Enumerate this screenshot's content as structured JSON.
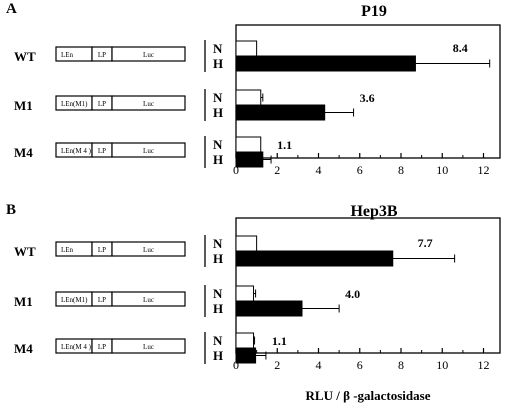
{
  "panels": [
    {
      "label": "A",
      "rows": [
        {
          "name": "WT",
          "segments": [
            "LEn",
            "LP",
            "Luc"
          ]
        },
        {
          "name": "M1",
          "segments": [
            "LEn(M1)",
            "LP",
            "Luc"
          ]
        },
        {
          "name": "M4",
          "segments": [
            "LEn(M 4 )",
            "LP",
            "Luc"
          ]
        }
      ]
    },
    {
      "label": "B",
      "rows": [
        {
          "name": "WT",
          "segments": [
            "LEn",
            "LP",
            "Luc"
          ]
        },
        {
          "name": "M1",
          "segments": [
            "LEn(M1)",
            "LP",
            "Luc"
          ]
        },
        {
          "name": "M4",
          "segments": [
            "LEn(M 4 )",
            "LP",
            "Luc"
          ]
        }
      ]
    }
  ],
  "condition_labels": [
    "N",
    "H"
  ],
  "colors": {
    "N": "#ffffff",
    "H": "#000000"
  },
  "chart_data": [
    {
      "type": "bar",
      "orientation": "horizontal",
      "title": "P19",
      "xlabel": "",
      "xlim": [
        0,
        12.8
      ],
      "xticks": [
        0,
        2,
        4,
        6,
        8,
        10,
        12
      ],
      "categories": [
        "WT",
        "M1",
        "M4"
      ],
      "series": [
        {
          "name": "N",
          "values": [
            1.0,
            1.2,
            1.2
          ],
          "errors": [
            0,
            0.1,
            0
          ]
        },
        {
          "name": "H",
          "values": [
            8.7,
            4.3,
            1.3
          ],
          "errors": [
            3.6,
            1.4,
            0.4
          ]
        }
      ],
      "annotations": [
        "8.4",
        "3.6",
        "1.1"
      ]
    },
    {
      "type": "bar",
      "orientation": "horizontal",
      "title": "Hep3B",
      "xlabel": "RLU / β -galactosidase",
      "xlim": [
        0,
        12.8
      ],
      "xticks": [
        0,
        2,
        4,
        6,
        8,
        10,
        12
      ],
      "categories": [
        "WT",
        "M1",
        "M4"
      ],
      "series": [
        {
          "name": "N",
          "values": [
            1.0,
            0.85,
            0.85
          ],
          "errors": [
            0,
            0.1,
            0.05
          ]
        },
        {
          "name": "H",
          "values": [
            7.6,
            3.2,
            0.95
          ],
          "errors": [
            3.0,
            1.8,
            0.5
          ]
        }
      ],
      "annotations": [
        "7.7",
        "4.0",
        "1.1"
      ]
    }
  ]
}
